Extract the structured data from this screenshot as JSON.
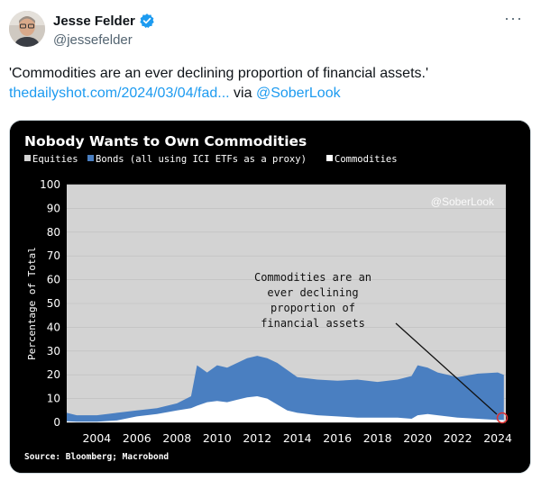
{
  "tweet": {
    "author_name": "Jesse Felder",
    "author_handle": "@jessefelder",
    "more_label": "···",
    "text": "'Commodities are an ever declining proportion of financial assets.'",
    "link_text": "thedailyshot.com/2024/03/04/fad...",
    "via_text": " via ",
    "mention": "@SoberLook"
  },
  "colors": {
    "verified": "#1d9bf0",
    "link": "#1d9bf0",
    "equities": "#d3d3d3",
    "bonds": "#4a7fc1",
    "commodities": "#ffffff",
    "chart_bg": "#000000"
  },
  "chart_data": {
    "type": "area",
    "title": "Nobody Wants to Own Commodities",
    "legend_text": [
      "Equities",
      "Bonds (all using ICI ETFs as a proxy)",
      "Commodities"
    ],
    "ylabel": "Percentage of Total",
    "xlabel": "",
    "ylim": [
      0,
      100
    ],
    "yticks": [
      "0",
      "10",
      "20",
      "30",
      "40",
      "50",
      "60",
      "70",
      "80",
      "90",
      "100"
    ],
    "xticks": [
      "2004",
      "2006",
      "2008",
      "2010",
      "2012",
      "2014",
      "2016",
      "2018",
      "2020",
      "2022",
      "2024"
    ],
    "xlim": [
      2002.5,
      2024.4
    ],
    "x": [
      2002.5,
      2003,
      2004,
      2005,
      2006,
      2007,
      2008,
      2008.7,
      2009,
      2009.5,
      2010,
      2010.5,
      2011,
      2011.5,
      2012,
      2012.5,
      2013,
      2013.5,
      2014,
      2015,
      2016,
      2017,
      2018,
      2019,
      2019.7,
      2020,
      2020.5,
      2021,
      2022,
      2023,
      2024,
      2024.3
    ],
    "series": [
      {
        "name": "Commodities",
        "values": [
          0.5,
          0.3,
          0.3,
          0.8,
          2.5,
          3.5,
          5,
          6,
          7,
          8.5,
          9,
          8.5,
          9.5,
          10.5,
          11,
          10,
          7.5,
          5,
          4,
          3,
          2.5,
          2,
          2,
          2,
          1.5,
          3,
          3.5,
          3,
          2,
          1.5,
          1,
          1
        ]
      },
      {
        "name": "Commodities + Bonds",
        "values": [
          4,
          3,
          3,
          4,
          5,
          6,
          8,
          11,
          24,
          21,
          24,
          23,
          25,
          27,
          28,
          27,
          25,
          22,
          19,
          18,
          17.5,
          18,
          17,
          18,
          19.5,
          24,
          23,
          21,
          19,
          20.5,
          21,
          20
        ]
      }
    ],
    "watermark": "@SoberLook",
    "annotation": "Commodities are an\never declining\nproportion of\nfinancial assets",
    "source": "Source: Bloomberg; Macrobond"
  }
}
